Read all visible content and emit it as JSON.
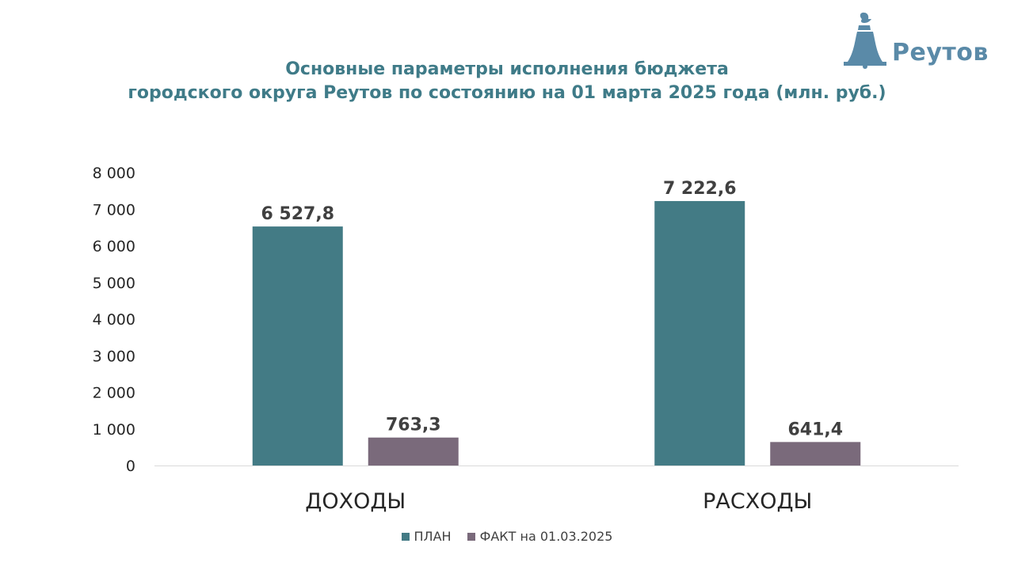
{
  "header": {
    "logo_text": "Реутов",
    "title_line1": "Основные параметры исполнения бюджета",
    "title_line2": "городского округа Реутов по состоянию на 01 марта 2025 года (млн. руб.)"
  },
  "colors": {
    "title": "#3f7b88",
    "logo": "#5a8aa8",
    "plan": "#437b85",
    "fact": "#7a6a7b",
    "axis_text": "#262626",
    "data_label": "#404040"
  },
  "chart_data": {
    "type": "bar",
    "title": "Основные параметры исполнения бюджета городского округа Реутов по состоянию на 01 марта 2025 года (млн. руб.)",
    "categories": [
      "ДОХОДЫ",
      "РАСХОДЫ"
    ],
    "series": [
      {
        "name": "ПЛАН",
        "values": [
          6527.8,
          7222.6
        ],
        "labels": [
          "6 527,8",
          "7 222,6"
        ]
      },
      {
        "name": "ФАКТ на 01.03.2025",
        "values": [
          763.3,
          641.4
        ],
        "labels": [
          "763,3",
          "641,4"
        ]
      }
    ],
    "ylim": [
      0,
      8000
    ],
    "yticks": [
      0,
      1000,
      2000,
      3000,
      4000,
      5000,
      6000,
      7000,
      8000
    ],
    "ytick_labels": [
      "0",
      "1 000",
      "2 000",
      "3 000",
      "4 000",
      "5 000",
      "6 000",
      "7 000",
      "8 000"
    ],
    "grid": false,
    "legend_position": "bottom"
  }
}
